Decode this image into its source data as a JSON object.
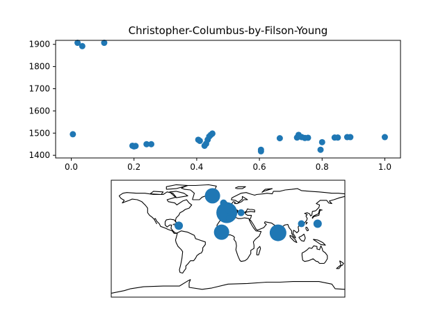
{
  "chart_data": [
    {
      "type": "scatter",
      "title": "Christopher-Columbus-by-Filson-Young",
      "xlabel": "",
      "ylabel": "",
      "xlim": [
        -0.05,
        1.05
      ],
      "ylim": [
        1388,
        1918
      ],
      "xticks": [
        0.0,
        0.2,
        0.4,
        0.6,
        0.8,
        1.0
      ],
      "xtick_labels": [
        "0.0",
        "0.2",
        "0.4",
        "0.6",
        "0.8",
        "1.0"
      ],
      "yticks": [
        1400,
        1500,
        1600,
        1700,
        1800,
        1900
      ],
      "ytick_labels": [
        "1400",
        "1500",
        "1600",
        "1700",
        "1800",
        "1900"
      ],
      "grid": false,
      "marker_color": "#1f77b4",
      "points": [
        {
          "x": 0.005,
          "y": 1495
        },
        {
          "x": 0.02,
          "y": 1907
        },
        {
          "x": 0.035,
          "y": 1892
        },
        {
          "x": 0.105,
          "y": 1907
        },
        {
          "x": 0.195,
          "y": 1443
        },
        {
          "x": 0.2,
          "y": 1440
        },
        {
          "x": 0.205,
          "y": 1442
        },
        {
          "x": 0.24,
          "y": 1450
        },
        {
          "x": 0.255,
          "y": 1450
        },
        {
          "x": 0.405,
          "y": 1470
        },
        {
          "x": 0.41,
          "y": 1465
        },
        {
          "x": 0.425,
          "y": 1443
        },
        {
          "x": 0.43,
          "y": 1452
        },
        {
          "x": 0.435,
          "y": 1470
        },
        {
          "x": 0.44,
          "y": 1485
        },
        {
          "x": 0.445,
          "y": 1492
        },
        {
          "x": 0.45,
          "y": 1498
        },
        {
          "x": 0.605,
          "y": 1425
        },
        {
          "x": 0.605,
          "y": 1418
        },
        {
          "x": 0.665,
          "y": 1477
        },
        {
          "x": 0.72,
          "y": 1480
        },
        {
          "x": 0.725,
          "y": 1492
        },
        {
          "x": 0.735,
          "y": 1482
        },
        {
          "x": 0.745,
          "y": 1478
        },
        {
          "x": 0.755,
          "y": 1479
        },
        {
          "x": 0.795,
          "y": 1425
        },
        {
          "x": 0.8,
          "y": 1459
        },
        {
          "x": 0.84,
          "y": 1480
        },
        {
          "x": 0.85,
          "y": 1480
        },
        {
          "x": 0.88,
          "y": 1482
        },
        {
          "x": 0.89,
          "y": 1482
        },
        {
          "x": 1.0,
          "y": 1482
        }
      ]
    },
    {
      "type": "scatter",
      "subtype": "world-map-bubbles",
      "projection": "plate-carree",
      "lon_range": [
        -180,
        180
      ],
      "lat_range": [
        -90,
        90
      ],
      "marker_color": "#1f77b4",
      "bubbles": [
        {
          "lon": -24,
          "lat": 66,
          "size": 11
        },
        {
          "lon": -7,
          "lat": 55,
          "size": 5
        },
        {
          "lon": -2,
          "lat": 40,
          "size": 15
        },
        {
          "lon": 2,
          "lat": 46,
          "size": 7
        },
        {
          "lon": 20,
          "lat": 40,
          "size": 5
        },
        {
          "lon": 2,
          "lat": 31,
          "size": 5
        },
        {
          "lon": -10,
          "lat": 10,
          "size": 11
        },
        {
          "lon": -76,
          "lat": 20,
          "size": 6
        },
        {
          "lon": 77,
          "lat": 9,
          "size": 12
        },
        {
          "lon": 113,
          "lat": 23,
          "size": 5
        },
        {
          "lon": 138,
          "lat": 23,
          "size": 6
        }
      ]
    }
  ]
}
